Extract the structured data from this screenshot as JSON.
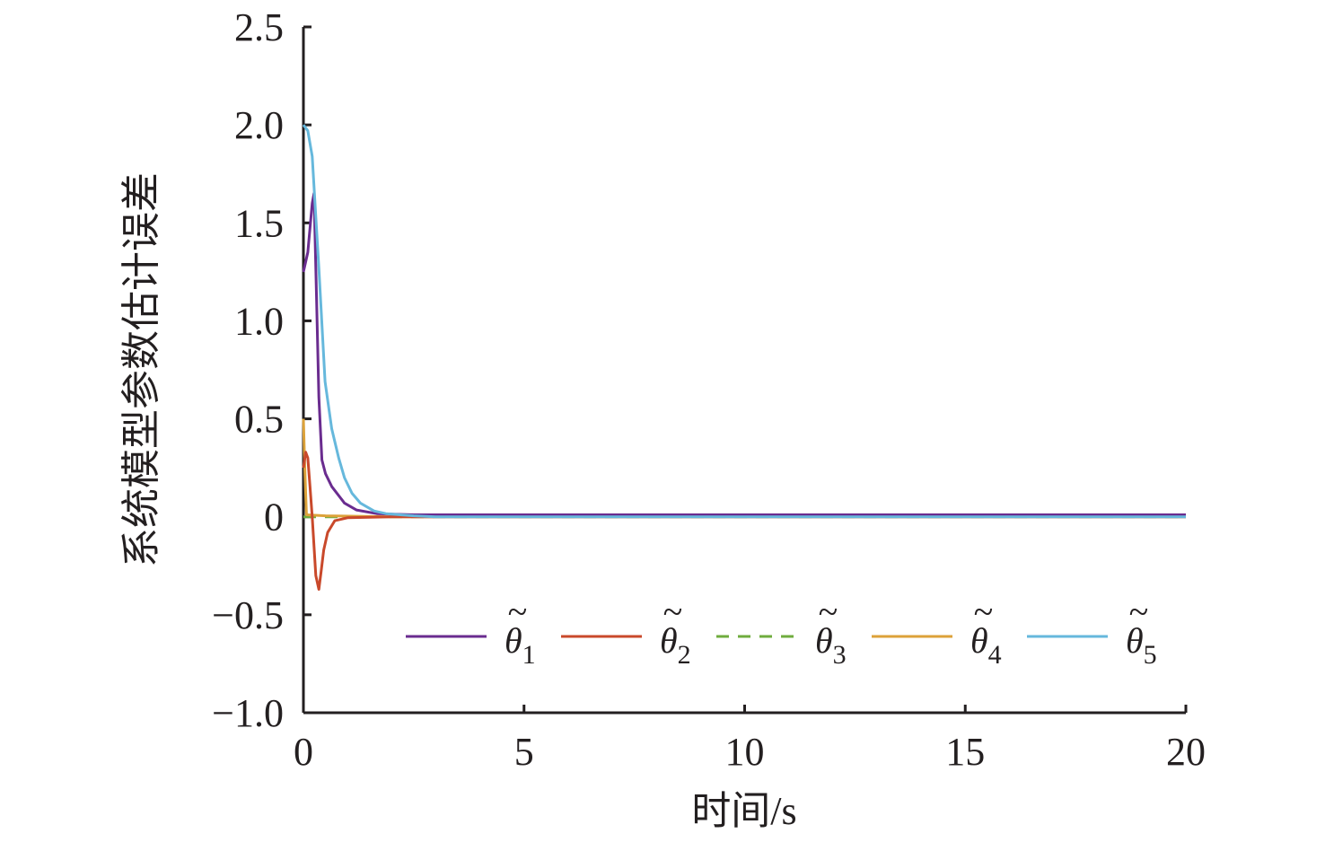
{
  "chart_data": {
    "type": "line",
    "title": "",
    "xlabel": "时间/s",
    "ylabel": "系统模型参数估计误差",
    "xlim": [
      0,
      20
    ],
    "ylim": [
      -1.0,
      2.5
    ],
    "xticks": [
      0,
      5,
      10,
      15,
      20
    ],
    "xtick_labels": [
      "0",
      "5",
      "10",
      "15",
      "20"
    ],
    "yticks": [
      -1.0,
      -0.5,
      0,
      0.5,
      1.0,
      1.5,
      2.0,
      2.5
    ],
    "ytick_labels": [
      "−1.0",
      "−0.5",
      "0",
      "0.5",
      "1.0",
      "1.5",
      "2.0",
      "2.5"
    ],
    "grid": false,
    "legend_placement": "bottom-right",
    "series": [
      {
        "name": "θ̃1",
        "base": "θ",
        "sub": "1",
        "color": "#6a2c8f",
        "dash": false,
        "points": [
          [
            0,
            1.25
          ],
          [
            0.1,
            1.35
          ],
          [
            0.2,
            1.6
          ],
          [
            0.24,
            1.65
          ],
          [
            0.3,
            1.1
          ],
          [
            0.35,
            0.61
          ],
          [
            0.42,
            0.29
          ],
          [
            0.5,
            0.22
          ],
          [
            0.64,
            0.155
          ],
          [
            0.93,
            0.07
          ],
          [
            1.2,
            0.035
          ],
          [
            1.66,
            0.016
          ],
          [
            2.5,
            0.01
          ],
          [
            20,
            0.01
          ]
        ]
      },
      {
        "name": "θ̃2",
        "base": "θ",
        "sub": "2",
        "color": "#c9492b",
        "dash": false,
        "points": [
          [
            0,
            0.25
          ],
          [
            0.05,
            0.33
          ],
          [
            0.1,
            0.3
          ],
          [
            0.15,
            0.15
          ],
          [
            0.2,
            0
          ],
          [
            0.28,
            -0.3
          ],
          [
            0.35,
            -0.37
          ],
          [
            0.4,
            -0.28
          ],
          [
            0.46,
            -0.17
          ],
          [
            0.55,
            -0.08
          ],
          [
            0.71,
            -0.02
          ],
          [
            1.0,
            -0.005
          ],
          [
            2,
            0
          ],
          [
            20,
            0
          ]
        ]
      },
      {
        "name": "θ̃3",
        "base": "θ",
        "sub": "3",
        "color": "#6fac3e",
        "dash": true,
        "points": [
          [
            0,
            0
          ],
          [
            20,
            0
          ]
        ]
      },
      {
        "name": "θ̃4",
        "base": "θ",
        "sub": "4",
        "color": "#dca23a",
        "dash": false,
        "points": [
          [
            0,
            0.5
          ],
          [
            0.03,
            0.25
          ],
          [
            0.07,
            0.01
          ],
          [
            0.5,
            0.005
          ],
          [
            2,
            0
          ],
          [
            20,
            0
          ]
        ]
      },
      {
        "name": "θ̃5",
        "base": "θ",
        "sub": "5",
        "color": "#66b8dc",
        "dash": false,
        "points": [
          [
            0,
            2.0
          ],
          [
            0.1,
            1.97
          ],
          [
            0.2,
            1.84
          ],
          [
            0.35,
            1.27
          ],
          [
            0.49,
            0.69
          ],
          [
            0.64,
            0.45
          ],
          [
            0.8,
            0.3
          ],
          [
            0.93,
            0.2
          ],
          [
            1.1,
            0.12
          ],
          [
            1.29,
            0.07
          ],
          [
            1.6,
            0.03
          ],
          [
            1.87,
            0.016
          ],
          [
            2.5,
            0.005
          ],
          [
            3,
            0
          ],
          [
            20,
            0
          ]
        ]
      }
    ]
  }
}
